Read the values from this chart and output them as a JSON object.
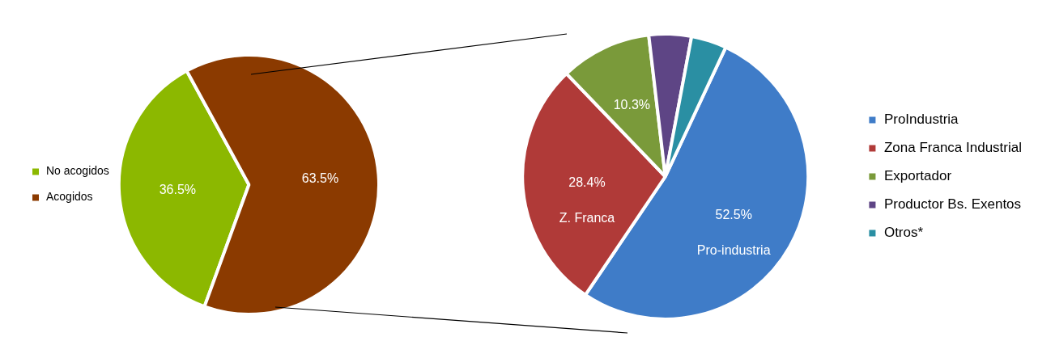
{
  "chart_data": [
    {
      "type": "pie",
      "categories": [
        "No acogidos",
        "Acogidos"
      ],
      "values": [
        36.5,
        63.5
      ],
      "colors": [
        "#8cb800",
        "#8b3a00"
      ],
      "value_labels": [
        "36.5%",
        "63.5%"
      ],
      "legend": "left"
    },
    {
      "type": "pie",
      "categories": [
        "ProIndustria",
        "Zona Franca Industrial",
        "Exportador",
        "Productor Bs. Exentos",
        "Otros*"
      ],
      "values": [
        52.5,
        28.4,
        10.3,
        4.8,
        4.0
      ],
      "colors": [
        "#3f7cc8",
        "#b03a38",
        "#7a9a3a",
        "#5e4585",
        "#2a8fa3"
      ],
      "value_labels": [
        "52.5%",
        "28.4%",
        "10.3%",
        null,
        null
      ],
      "legend": "right",
      "annotations": [
        {
          "text": "Pro-industria",
          "x": "ProIndustria"
        },
        {
          "text": "Z. Franca",
          "x": "Zona Franca Industrial"
        }
      ]
    }
  ]
}
